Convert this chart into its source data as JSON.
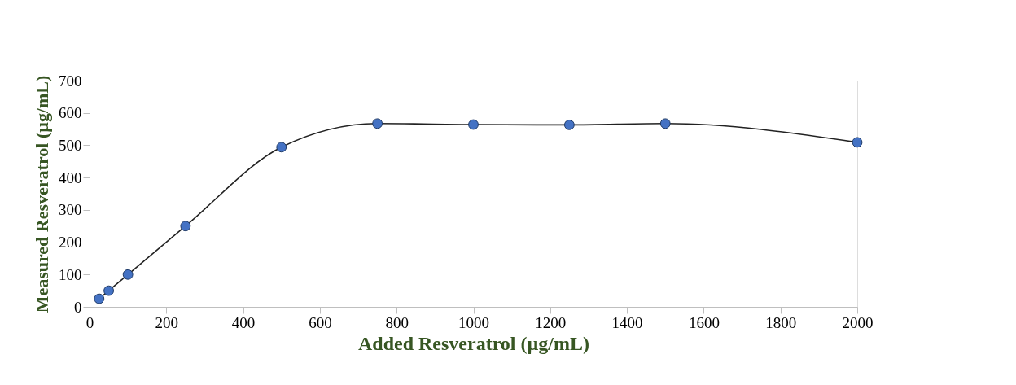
{
  "chart_data": {
    "type": "line",
    "xlabel": "Added Resveratrol (µg/mL)",
    "ylabel": "Measured Resveratrol (µg/mL)",
    "x": [
      25,
      50,
      100,
      250,
      500,
      750,
      1000,
      1250,
      1500,
      2000
    ],
    "series": [
      {
        "color": "#4472c4",
        "values": [
          25,
          50,
          100,
          250,
          494,
          567,
          564,
          563,
          567,
          509
        ]
      }
    ],
    "xlim": [
      0,
      2000
    ],
    "xticks": [
      0,
      200,
      400,
      600,
      800,
      1000,
      1200,
      1400,
      1600,
      1800,
      2000
    ],
    "ylim": [
      0,
      700
    ],
    "yticks": [
      0,
      100,
      200,
      300,
      400,
      500,
      600,
      700
    ],
    "grid": false,
    "marker": "circle",
    "line_style": "solid"
  }
}
